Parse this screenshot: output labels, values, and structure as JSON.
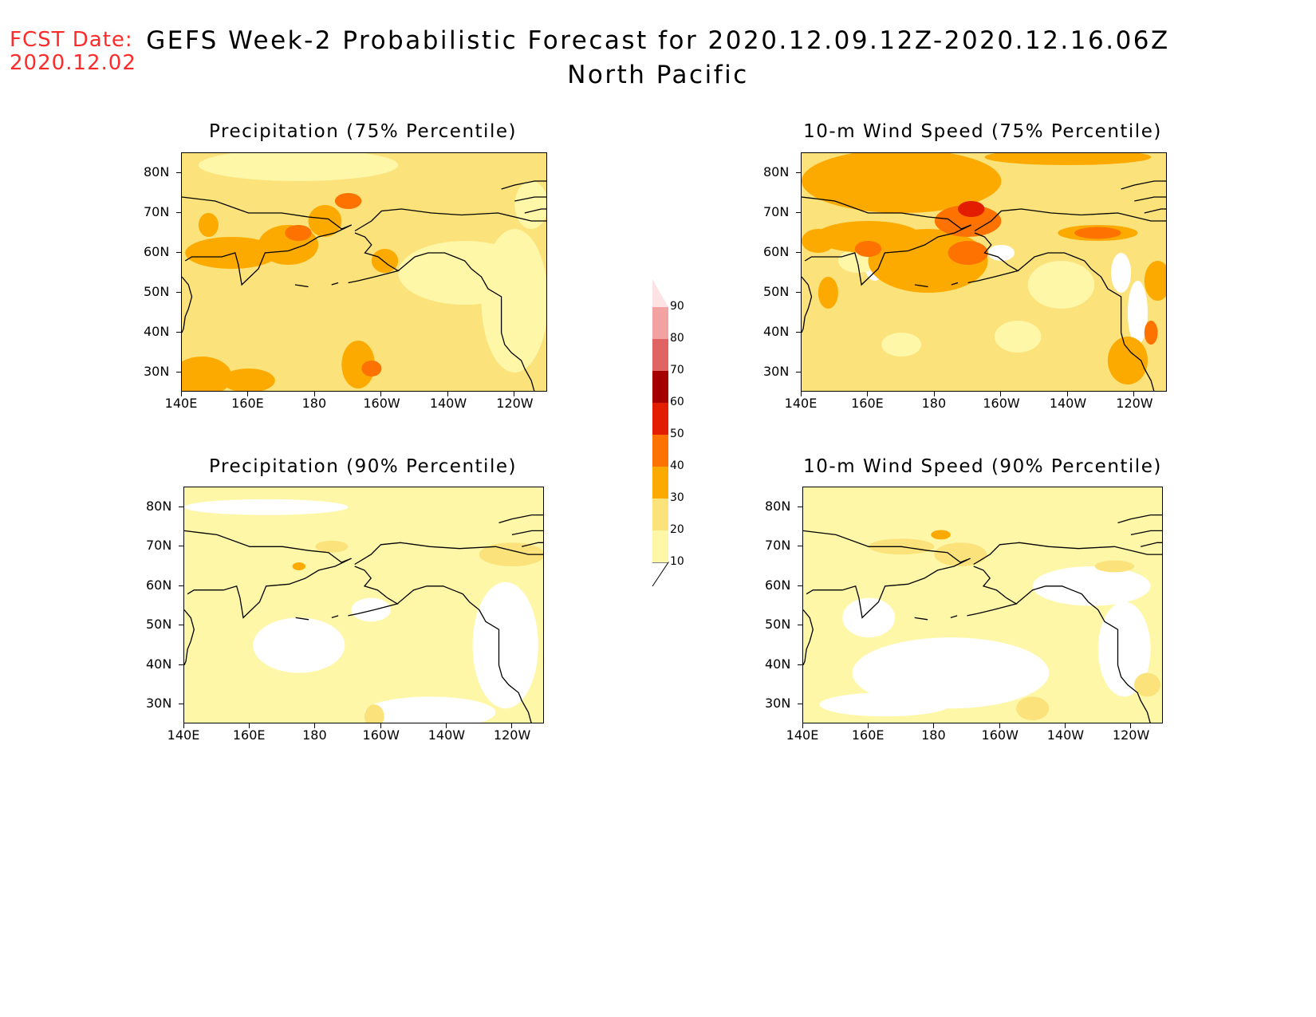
{
  "header": {
    "fcst_label": "FCST Date:",
    "fcst_date": "2020.12.02",
    "title": "GEFS Week-2 Probabilistic Forecast for 2020.12.09.12Z-2020.12.16.06Z",
    "subtitle": "North Pacific"
  },
  "map_extent": {
    "lon_min": 140,
    "lon_max": 250,
    "lat_min": 25,
    "lat_max": 85
  },
  "axes": {
    "lat_ticks": [
      "80N",
      "70N",
      "60N",
      "50N",
      "40N",
      "30N"
    ],
    "lon_ticks": [
      "140E",
      "160E",
      "180",
      "160W",
      "140W",
      "120W"
    ]
  },
  "panels": [
    {
      "title": "Precipitation (75% Percentile)",
      "field": "precip-75"
    },
    {
      "title": "10-m Wind Speed (75% Percentile)",
      "field": "wind-75"
    },
    {
      "title": "Precipitation (90% Percentile)",
      "field": "precip-90"
    },
    {
      "title": "10-m Wind Speed (90% Percentile)",
      "field": "wind-90"
    }
  ],
  "colorbar": {
    "labels": [
      "10",
      "20",
      "30",
      "40",
      "50",
      "60",
      "70",
      "80",
      "90"
    ],
    "colors": [
      "#fff7a8",
      "#fbe27a",
      "#fdaa00",
      "#fd7200",
      "#e21d00",
      "#a50000",
      "#e06464",
      "#f3a2a2",
      "#fde3e3"
    ]
  },
  "colors": {
    "fcst_text": "#ff2a2a",
    "lvl1": "#fff7a8",
    "lvl2": "#fbe27a",
    "lvl3": "#fdaa00",
    "lvl4": "#fd7200",
    "lvl5": "#e21d00",
    "white": "#ffffff"
  }
}
